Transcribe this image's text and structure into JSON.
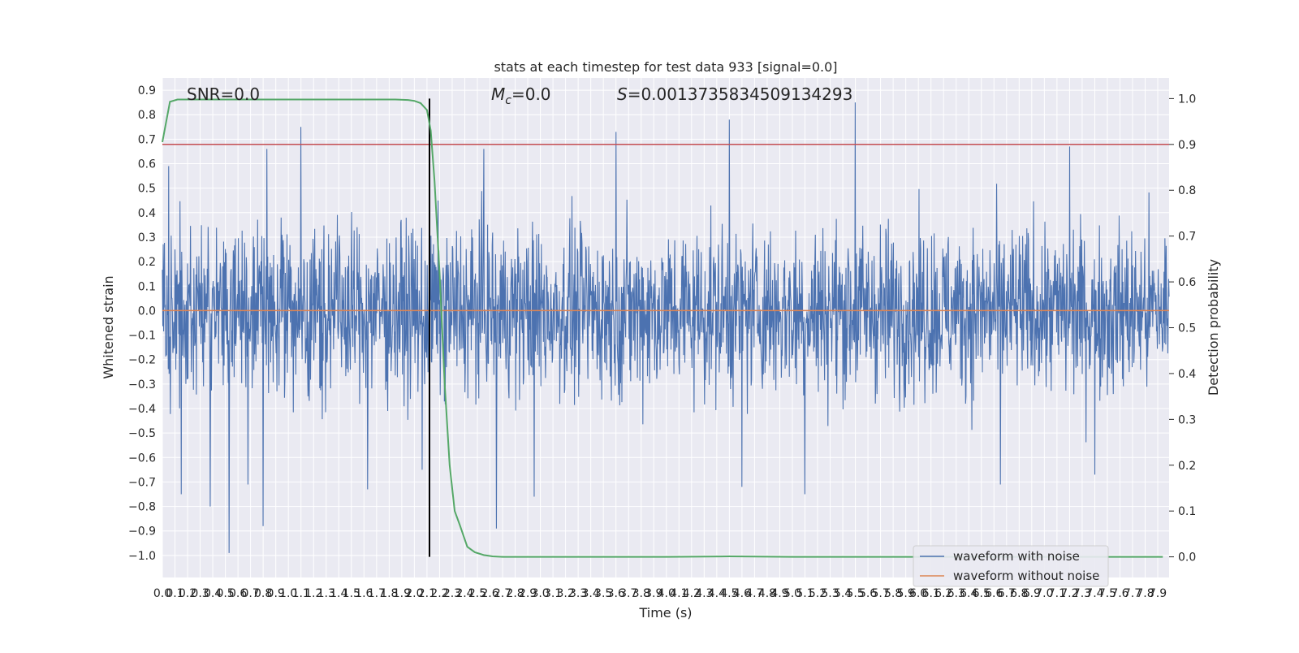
{
  "chart_data": {
    "type": "line",
    "title": "stats at each timestep for test data 933 [signal=0.0]",
    "xlabel": "Time (s)",
    "ylabel": "Whitened strain",
    "y2label": "Detection probability",
    "xlim": [
      0.0,
      7.99
    ],
    "ylim": [
      -1.09,
      0.95
    ],
    "y2lim": [
      -0.045,
      1.045
    ],
    "x_ticks": [
      0.0,
      0.1,
      0.2,
      0.3,
      0.4,
      0.5,
      0.6,
      0.7,
      0.8,
      0.9,
      1.0,
      1.1,
      1.2,
      1.3,
      1.4,
      1.5,
      1.6,
      1.7,
      1.8,
      1.9,
      2.0,
      2.1,
      2.2,
      2.3,
      2.4,
      2.5,
      2.6,
      2.7,
      2.8,
      2.9,
      3.0,
      3.1,
      3.2,
      3.3,
      3.4,
      3.5,
      3.6,
      3.7,
      3.8,
      3.9,
      4.0,
      4.1,
      4.2,
      4.3,
      4.4,
      4.5,
      4.6,
      4.7,
      4.8,
      4.9,
      5.0,
      5.1,
      5.2,
      5.3,
      5.4,
      5.5,
      5.6,
      5.7,
      5.8,
      5.9,
      6.0,
      6.1,
      6.2,
      6.3,
      6.4,
      6.5,
      6.6,
      6.7,
      6.8,
      6.9,
      7.0,
      7.1,
      7.2,
      7.3,
      7.4,
      7.5,
      7.6,
      7.7,
      7.8,
      7.9
    ],
    "x_tick_labels": [
      "0.0",
      "0.1",
      "0.2",
      "0.3",
      "0.4",
      "0.5",
      "0.6",
      "0.7",
      "0.8",
      "0.9",
      "1.0",
      "1.1",
      "1.2",
      "1.3",
      "1.4",
      "1.5",
      "1.6",
      "1.7",
      "1.8",
      "1.9",
      "2.0",
      "2.1",
      "2.2",
      "2.3",
      "2.4",
      "2.5",
      "2.6",
      "2.7",
      "2.8",
      "2.9",
      "3.0",
      "3.1",
      "3.2",
      "3.3",
      "3.4",
      "3.5",
      "3.6",
      "3.7",
      "3.8",
      "3.9",
      "4.0",
      "4.1",
      "4.2",
      "4.3",
      "4.4",
      "4.5",
      "4.6",
      "4.7",
      "4.8",
      "4.9",
      "5.0",
      "5.1",
      "5.2",
      "5.3",
      "5.4",
      "5.5",
      "5.6",
      "5.7",
      "5.8",
      "5.9",
      "6.0",
      "6.1",
      "6.2",
      "6.3",
      "6.4",
      "6.5",
      "6.6",
      "6.7",
      "6.8",
      "6.9",
      "7.0",
      "7.1",
      "7.2",
      "7.3",
      "7.4",
      "7.5",
      "7.6",
      "7.7",
      "7.8",
      "7.9"
    ],
    "y_ticks": [
      0.9,
      0.8,
      0.7,
      0.6,
      0.5,
      0.4,
      0.3,
      0.2,
      0.1,
      0.0,
      -0.1,
      -0.2,
      -0.3,
      -0.4,
      -0.5,
      -0.6,
      -0.7,
      -0.8,
      -0.9,
      -1.0
    ],
    "y_tick_labels": [
      "0.9",
      "0.8",
      "0.7",
      "0.6",
      "0.5",
      "0.4",
      "0.3",
      "0.2",
      "0.1",
      "0.0",
      "−0.1",
      "−0.2",
      "−0.3",
      "−0.4",
      "−0.5",
      "−0.6",
      "−0.7",
      "−0.8",
      "−0.9",
      "−1.0"
    ],
    "y2_ticks": [
      1.0,
      0.9,
      0.8,
      0.7,
      0.6,
      0.5,
      0.4,
      0.3,
      0.2,
      0.1,
      0.0
    ],
    "y2_tick_labels": [
      "1.0",
      "0.9",
      "0.8",
      "0.7",
      "0.6",
      "0.5",
      "0.4",
      "0.3",
      "0.2",
      "0.1",
      "0.0"
    ],
    "series": [
      {
        "name": "waveform with noise",
        "color": "#4c72b0",
        "axis": "left",
        "note_values": "dense noise trace; band roughly -0.25..0.30 with spikes; notable extremes listed",
        "spikes": [
          {
            "x": 0.05,
            "y": 0.59
          },
          {
            "x": 0.15,
            "y": 0.72
          },
          {
            "x": 0.15,
            "y": -0.75
          },
          {
            "x": 0.38,
            "y": -0.8
          },
          {
            "x": 0.53,
            "y": 0.85
          },
          {
            "x": 0.53,
            "y": -0.99
          },
          {
            "x": 0.68,
            "y": -0.71
          },
          {
            "x": 0.83,
            "y": 0.66
          },
          {
            "x": 0.8,
            "y": -0.88
          },
          {
            "x": 1.1,
            "y": 0.75
          },
          {
            "x": 1.63,
            "y": -0.73
          },
          {
            "x": 2.06,
            "y": -0.65
          },
          {
            "x": 2.55,
            "y": 0.66
          },
          {
            "x": 2.65,
            "y": -0.89
          },
          {
            "x": 2.95,
            "y": -0.76
          },
          {
            "x": 3.6,
            "y": 0.73
          },
          {
            "x": 4.5,
            "y": 0.78
          },
          {
            "x": 4.6,
            "y": -0.72
          },
          {
            "x": 5.5,
            "y": 0.85
          },
          {
            "x": 5.1,
            "y": -0.75
          },
          {
            "x": 6.65,
            "y": 0.8
          },
          {
            "x": 6.65,
            "y": -0.71
          },
          {
            "x": 7.2,
            "y": 0.67
          },
          {
            "x": 7.4,
            "y": -0.67
          }
        ]
      },
      {
        "name": "waveform without noise",
        "color": "#dd8452",
        "axis": "left",
        "x": [
          0.0,
          7.99
        ],
        "y": [
          0.0,
          0.0
        ]
      },
      {
        "name": "",
        "color": "#55a868",
        "axis": "right",
        "x": [
          0.0,
          0.06,
          0.12,
          0.5,
          1.0,
          1.5,
          1.85,
          1.95,
          2.0,
          2.05,
          2.1,
          2.13,
          2.16,
          2.2,
          2.24,
          2.28,
          2.32,
          2.36,
          2.42,
          2.48,
          2.55,
          2.62,
          2.7,
          3.0,
          3.5,
          4.0,
          4.5,
          5.0,
          5.5,
          6.0,
          6.5,
          7.0,
          7.5,
          7.94
        ],
        "y": [
          0.905,
          0.993,
          0.998,
          0.998,
          0.998,
          0.998,
          0.998,
          0.997,
          0.995,
          0.99,
          0.975,
          0.93,
          0.82,
          0.62,
          0.38,
          0.2,
          0.1,
          0.07,
          0.022,
          0.01,
          0.004,
          0.001,
          0.0,
          0.0,
          0.0,
          0.0,
          0.001,
          0.0,
          0.0,
          0.0,
          0.0,
          0.0,
          0.0,
          0.0
        ]
      }
    ],
    "threshold_line": {
      "axis": "right",
      "y": 0.9,
      "color": "#c44e52"
    },
    "vertical_line": {
      "x": 2.12,
      "color": "#000000"
    },
    "annotations": [
      {
        "text": "SNR=0.0"
      },
      {
        "text": "=0.0",
        "math_prefix": "M",
        "math_sub": "c"
      },
      {
        "text": "=0.0013735834509134293",
        "math_prefix": "S"
      }
    ],
    "legend": {
      "placement": "lower-right",
      "entries": [
        "waveform with noise",
        "waveform without noise"
      ]
    },
    "grid": true,
    "style": {
      "axes_bg": "#eaeaf2",
      "grid_color": "#ffffff"
    }
  }
}
